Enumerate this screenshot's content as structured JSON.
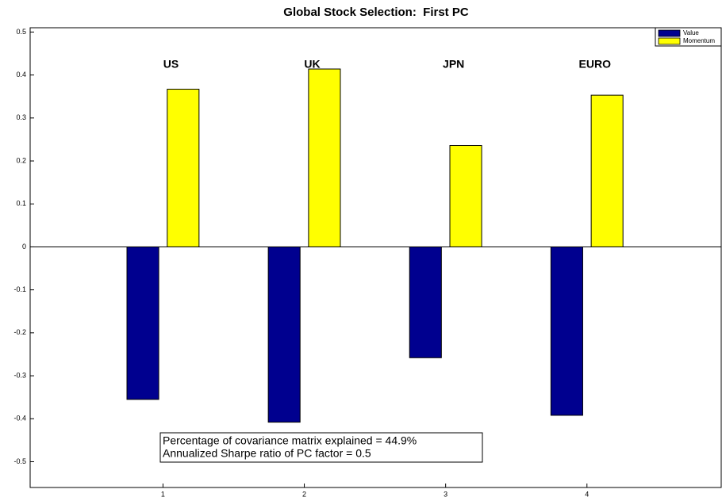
{
  "chart_data": {
    "type": "bar",
    "title": "Global Stock Selection:  First PC",
    "x": [
      1,
      2,
      3,
      4
    ],
    "group_labels": [
      "US",
      "UK",
      "JPN",
      "EURO"
    ],
    "series": [
      {
        "name": "Value",
        "color": "#00008f",
        "values": [
          -0.355,
          -0.408,
          -0.258,
          -0.392
        ]
      },
      {
        "name": "Momentum",
        "color": "#ffff00",
        "values": [
          0.367,
          0.414,
          0.236,
          0.353
        ]
      }
    ],
    "xlim": [
      0.06,
      4.95
    ],
    "xticks": [
      1,
      2,
      3,
      4
    ],
    "ylim": [
      -0.56,
      0.51
    ],
    "yticks": [
      0.5,
      0.4,
      0.3,
      0.2,
      0.1,
      0,
      -0.1,
      -0.2,
      -0.3,
      -0.4,
      -0.5
    ],
    "annotations": [
      "Percentage of covariance matrix explained = 44.9%",
      "Annualized Sharpe ratio of PC factor = 0.5"
    ],
    "legend": "upper right"
  }
}
